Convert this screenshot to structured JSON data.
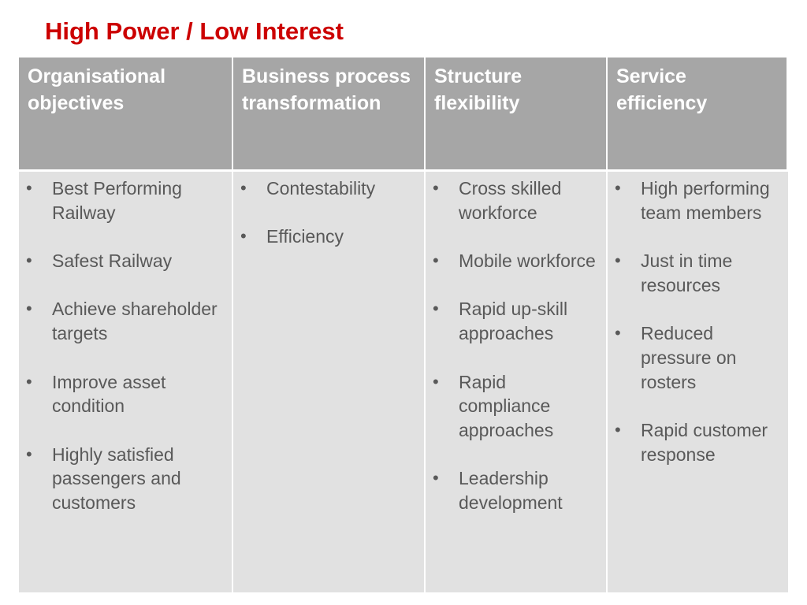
{
  "title": "High Power / Low Interest",
  "columns": [
    {
      "header": "Organisational objectives",
      "items": [
        "Best Performing Railway",
        "Safest Railway",
        "Achieve shareholder targets",
        "Improve asset condition",
        "Highly satisfied passengers and customers"
      ]
    },
    {
      "header": "Business process transformation",
      "items": [
        "Contestability",
        "Efficiency"
      ]
    },
    {
      "header": "Structure flexibility",
      "items": [
        "Cross skilled workforce",
        "Mobile workforce",
        "Rapid up-skill approaches",
        "Rapid compliance approaches",
        "Leadership development"
      ]
    },
    {
      "header": "Service efficiency",
      "items": [
        "High performing team members",
        "Just in time resources",
        "Reduced pressure on rosters",
        "Rapid customer response"
      ]
    }
  ],
  "colors": {
    "title": "#cc0000",
    "header_bg": "#a6a6a6",
    "body_bg": "#e1e1e1",
    "body_text": "#595959"
  }
}
